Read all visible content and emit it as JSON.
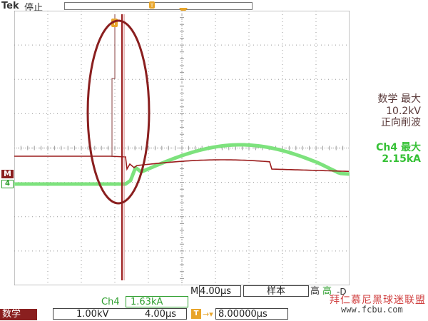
{
  "header": {
    "brand": "Tek",
    "status": "停止"
  },
  "readouts": {
    "math": {
      "title": "数学 最大",
      "value": "10.2kV",
      "label": "正向削波"
    },
    "ch4": {
      "title": "Ch4 最大",
      "value": "2.15kA"
    }
  },
  "markers": {
    "math": "M",
    "ch4": "4"
  },
  "bottom": {
    "timebase_prefix": "M",
    "timebase": "4.00μs",
    "acquisition_mode": "样本",
    "resolution_a": "高",
    "resolution_b": "高",
    "ref_icon": "-D",
    "ch4_meas_label": "Ch4",
    "ch4_meas_value": "1.63kA",
    "math_chip": "数学",
    "math_scale": "1.00kV",
    "math_time_scale": "4.00μs",
    "trigger_icon": "T",
    "trigger_arrow": "→▾",
    "trigger_position": "8.00000μs"
  },
  "watermark": {
    "text": "拜仁慕尼黑球迷联盟",
    "url": "www.fcbu.com"
  },
  "colors": {
    "math_trace": "#9b1c1c",
    "ch4_trace": "#7de27d",
    "grid": "#8a8a8a",
    "ellipse": "#8a1f1f",
    "trigger": "#e8a52a"
  }
}
